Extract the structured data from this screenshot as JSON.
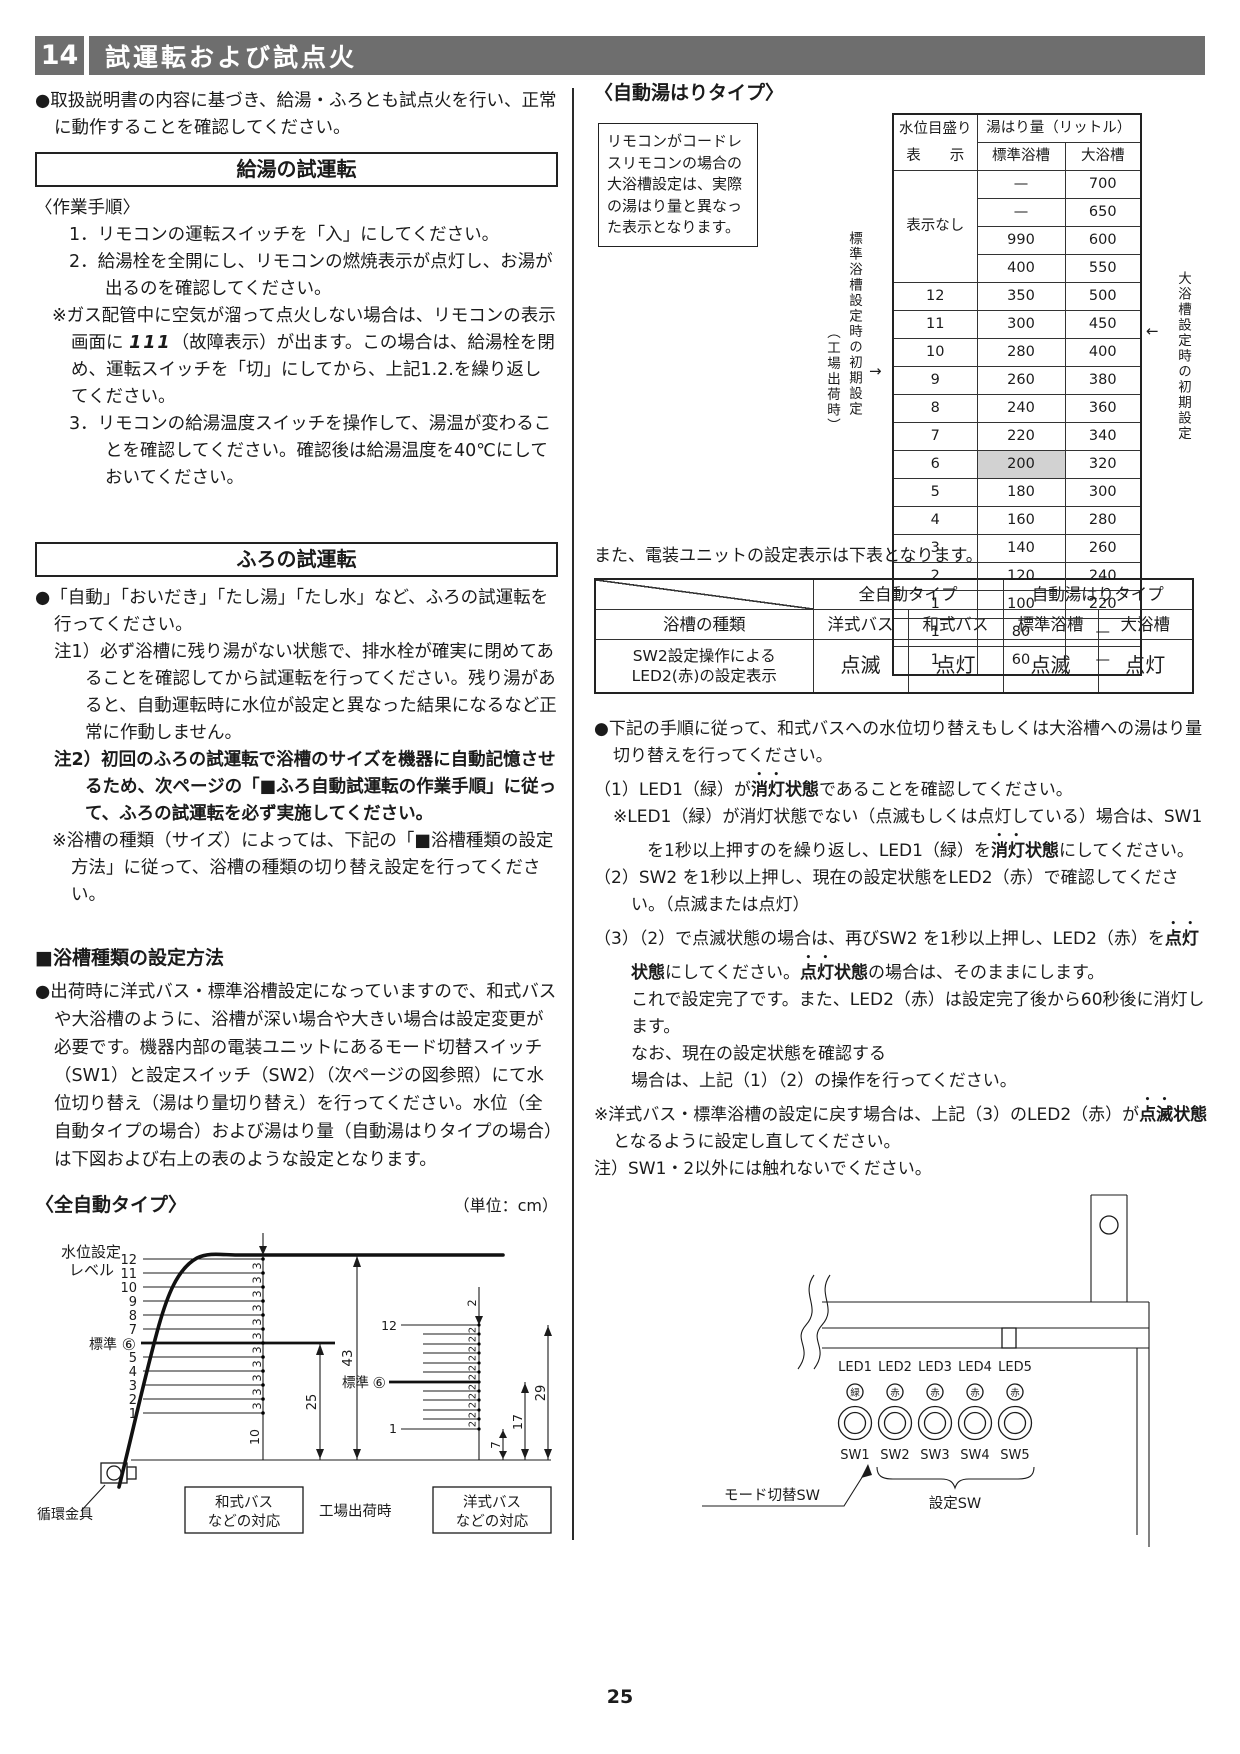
{
  "page": {
    "section_number": "14",
    "section_title": "試運転および試点火",
    "page_number": "25"
  },
  "left": {
    "intro": "●取扱説明書の内容に基づき、給湯・ふろとも試点火を行い、正常に動作することを確認してください。",
    "kyuto_heading": "給湯の試運転",
    "tejun": "〈作業手順〉",
    "step1": "1．リモコンの運転スイッチを「入」にしてください。",
    "step2": "2．給湯栓を全開にし、リモコンの燃焼表示が点灯し、お湯が出るのを確認してください。",
    "gas_note_segs": [
      {
        "t": "※ガス配管中に空気が溜って点火しない場合は、リモコンの表示画面に "
      },
      {
        "t": "111",
        "it": 1
      },
      {
        "t": "（故障表示）が出ます。この場合は、給湯栓を閉め、運転スイッチを「切」にしてから、上記1.2.を繰り返してください。"
      }
    ],
    "step3": "3．リモコンの給湯温度スイッチを操作して、湯温が変わることを確認してください。確認後は給湯温度を40℃にしておいてください。",
    "furo_heading": "ふろの試運転",
    "furo_intro": "●「自動」「おいだき」「たし湯」「たし水」など、ふろの試運転を行ってください。",
    "note1": "注1）必ず浴槽に残り湯がない状態で、排水栓が確実に閉めてあることを確認してから試運転を行ってください。残り湯があると、自動運転時に水位が設定と異なった結果になるなど正常に作動しません。",
    "note2": "注2）初回のふろの試運転で浴槽のサイズを機器に自動記憶させるため、次ページの「■ふろ自動試運転の作業手順」に従って、ふろの試運転を必ず実施してください。",
    "note3": "※浴槽の種類（サイズ）によっては、下記の「■浴槽種類の設定方法」に従って、浴槽の種類の切り替え設定を行ってください。",
    "set_heading": "■浴槽種類の設定方法",
    "set_para": "●出荷時に洋式バス・標準浴槽設定になっていますので、和式バスや大浴槽のように、浴槽が深い場合や大きい場合は設定変更が必要です。機器内部の電装ユニットにあるモード切替スイッチ（SW1）と設定スイッチ（SW2）（次ページの図参照）にて水位切り替え（湯はり量切り替え）を行ってください。水位（全自動タイプの場合）および湯はり量（自動湯はりタイプの場合）は下図および右上の表のような設定となります。",
    "diagram": {
      "heading": "〈全自動タイプ〉",
      "unit": "（単位：cm）",
      "axis_l1": "水位設定",
      "axis_l2": "レベル",
      "levels": [
        "12",
        "11",
        "10",
        "9",
        "8",
        "7",
        "5",
        "4",
        "3",
        "2",
        "1"
      ],
      "standard": "標準",
      "std_num": "⑥",
      "d3": "3",
      "d43": "43",
      "d25": "25",
      "d10": "10",
      "r12": "12",
      "r1": "1",
      "d2": "2",
      "d29": "29",
      "d17": "17",
      "d7": "7",
      "fitting": "循環金具",
      "washiki_l1": "和式バス",
      "washiki_l2": "などの対応",
      "factory": "工場出荷時",
      "yoshiki_l1": "洋式バス",
      "yoshiki_l2": "などの対応"
    }
  },
  "right": {
    "heading": "〈自動湯はりタイプ〉",
    "note_box": "リモコンがコードレスリモコンの場合の大浴槽設定は、実際の湯はり量と異なった表示となります。",
    "table1": {
      "col1_l1": "水位目盛り",
      "col1_l2": "表　　示",
      "span_header": "湯はり量（リットル）",
      "sub1": "標準浴槽",
      "sub2": "大浴槽",
      "no_display": "表示なし",
      "rows": [
        [
          "",
          "—",
          "700"
        ],
        [
          "",
          "—",
          "650"
        ],
        [
          "",
          "990",
          "600"
        ],
        [
          "",
          "400",
          "550"
        ],
        [
          "12",
          "350",
          "500"
        ],
        [
          "11",
          "300",
          "450"
        ],
        [
          "10",
          "280",
          "400"
        ],
        [
          "9",
          "260",
          "380"
        ],
        [
          "8",
          "240",
          "360"
        ],
        [
          "7",
          "220",
          "340"
        ],
        [
          "6",
          "200",
          "320"
        ],
        [
          "5",
          "180",
          "300"
        ],
        [
          "4",
          "160",
          "280"
        ],
        [
          "3",
          "140",
          "260"
        ],
        [
          "2",
          "120",
          "240"
        ],
        [
          "1",
          "100",
          "220"
        ],
        [
          "1",
          "80",
          "—"
        ],
        [
          "1",
          "60",
          "—"
        ]
      ],
      "left_note_l1": "標準浴槽設定時の初期設定",
      "left_note_l2": "（工場出荷時）",
      "right_note": "大浴槽設定時の初期設定",
      "left_arrow": "→",
      "right_arrow": "←"
    },
    "mid_text": "また、電装ユニットの設定表示は下表となります。",
    "table2": {
      "group1": "全自動タイプ",
      "group2": "自動湯はりタイプ",
      "row_header": "浴槽の種類",
      "cols": [
        "洋式バス",
        "和式バス",
        "標準浴槽",
        "大浴槽"
      ],
      "row_label_l1": "SW2設定操作による",
      "row_label_l2": "LED2(赤)の設定表示",
      "values": [
        "点滅",
        "点灯",
        "点滅",
        "点灯"
      ]
    },
    "proc_intro": "●下記の手順に従って、和式バスへの水位切り替えもしくは大浴槽への湯はり量切り替えを行ってください。",
    "step1_segs": [
      {
        "t": "（1）LED1（緑）が"
      },
      {
        "t": "消灯",
        "e": 1
      },
      {
        "t": "状態",
        "b": 1
      },
      {
        "t": "であることを確認してください。"
      }
    ],
    "step1_note_segs": [
      {
        "t": "※LED1（緑）が消灯状態でない（点滅もしくは点灯している）場合は、SW1 を1秒以上押すのを繰り返し、LED1（緑）を"
      },
      {
        "t": "消灯",
        "e": 1
      },
      {
        "t": "状態",
        "b": 1
      },
      {
        "t": "にしてください。"
      }
    ],
    "step2": "（2）SW2 を1秒以上押し、現在の設定状態をLED2（赤）で確認してください。（点滅または点灯）",
    "step3_segs": [
      {
        "t": "（3）（2）で点滅状態の場合は、再びSW2 を1秒以上押し、LED2（赤）を"
      },
      {
        "t": "点灯",
        "e": 1
      },
      {
        "t": "状態",
        "b": 1
      },
      {
        "t": "にしてください。"
      },
      {
        "t": "点灯",
        "e": 1
      },
      {
        "t": "状態",
        "b": 1
      },
      {
        "t": "の場合は、そのままにします。"
      }
    ],
    "step3_cont1": "これで設定完了です。また、LED2（赤）は設定完了後から60秒後に消灯します。",
    "step3_cont2": "なお、現在の設定状態を確認する",
    "step3_cont3": "場合は、上記（1）（2）の操作を行ってください。",
    "reset_note_segs": [
      {
        "t": "※洋式バス・標準浴槽の設定に戻す場合は、上記（3）のLED2（赤）が"
      },
      {
        "t": "点滅",
        "e": 1
      },
      {
        "t": "状態",
        "b": 1
      },
      {
        "t": "となるように設定し直してください。"
      }
    ],
    "caution": "注）SW1・2以外には触れないでください。",
    "diagram2": {
      "leds": [
        "LED1",
        "LED2",
        "LED3",
        "LED4",
        "LED5"
      ],
      "led_colors": [
        "緑",
        "赤",
        "赤",
        "赤",
        "赤"
      ],
      "sws": [
        "SW1",
        "SW2",
        "SW3",
        "SW4",
        "SW5"
      ],
      "mode_sw": "モード切替SW",
      "set_sw": "設定SW"
    }
  }
}
